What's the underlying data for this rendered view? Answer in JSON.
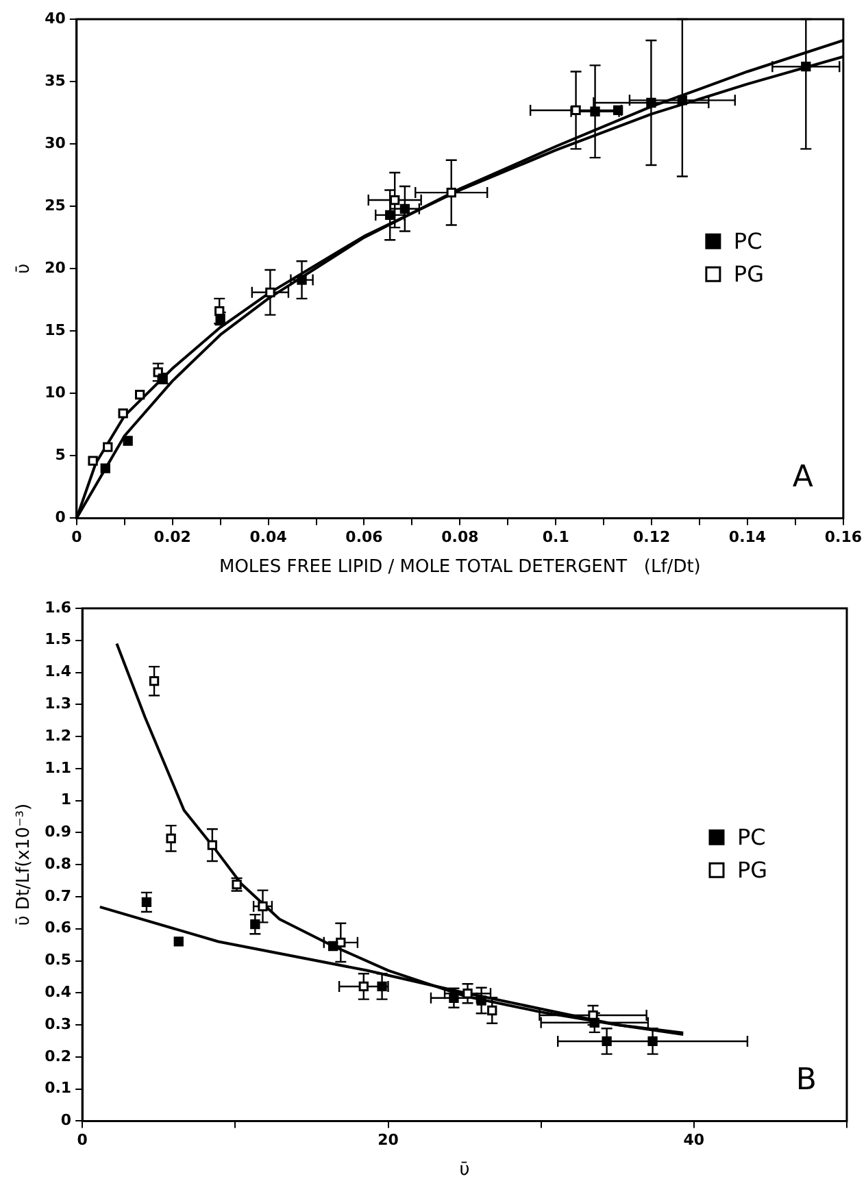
{
  "chart_data": [
    {
      "type": "scatter",
      "ylabel": "ῡ",
      "xlabel": "MOLES FREE LIPID / MOLE TOTAL DETERGENT   (Lf/Dt)",
      "xlim": [
        0,
        0.16
      ],
      "ylim": [
        0,
        40
      ],
      "xticks": [
        0,
        {
          "value": 0.01,
          "label": null
        },
        0.02,
        {
          "value": 0.03,
          "label": null
        },
        0.04,
        {
          "value": 0.05,
          "label": null
        },
        0.06,
        {
          "value": 0.07,
          "label": null
        },
        0.08,
        {
          "value": 0.09,
          "label": null
        },
        0.1,
        {
          "value": 0.11,
          "label": null
        },
        0.12,
        {
          "value": 0.13,
          "label": null
        },
        0.14,
        {
          "value": 0.15,
          "label": null
        },
        0.16
      ],
      "yticks": [
        0,
        5,
        10,
        15,
        20,
        25,
        30,
        35,
        40
      ],
      "legend": "right",
      "annotations": [
        "A"
      ],
      "series": [
        {
          "name": "PC",
          "color": "#000000",
          "marker": "square",
          "x": [
            0.006,
            0.0107,
            0.018,
            0.03,
            0.047,
            0.0654,
            0.0685,
            0.1082,
            0.113,
            0.1199,
            0.1264,
            0.1522
          ],
          "values": [
            4.0,
            6.2,
            11.2,
            16.0,
            19.1,
            24.3,
            24.8,
            32.6,
            32.7,
            33.3,
            33.5,
            36.2
          ],
          "errors": [
            null,
            null,
            0.4,
            0.5,
            1.5,
            2.0,
            1.8,
            3.7,
            null,
            5,
            [
              27.4,
              40
            ],
            [
              29.6,
              40
            ]
          ],
          "xerrors": [
            null,
            null,
            null,
            null,
            0.0023,
            0.003,
            0.003,
            0.005,
            null,
            0.012,
            0.011,
            0.007
          ]
        },
        {
          "name": "PG",
          "color": "#000000",
          "marker": "square",
          "x": [
            0.0034,
            0.0065,
            0.0097,
            0.0132,
            0.017,
            0.0298,
            0.0404,
            0.0664,
            0.0782,
            0.1042
          ],
          "values": [
            4.6,
            5.7,
            8.4,
            9.9,
            11.7,
            16.6,
            18.1,
            25.5,
            26.1,
            32.7
          ],
          "errors": [
            null,
            null,
            null,
            null,
            0.7,
            1.0,
            1.8,
            2.2,
            2.6,
            3.1
          ],
          "xerrors": [
            null,
            null,
            null,
            null,
            null,
            null,
            0.0038,
            0.0055,
            0.0075,
            0.0095
          ]
        },
        {
          "type": "line",
          "color": "#000000",
          "marker": "none",
          "x": [
            0,
            0.01,
            0.02,
            0.03,
            0.04,
            0.06,
            0.08,
            0.1,
            0.12,
            0.14,
            0.16
          ],
          "values": [
            0,
            6.6,
            11,
            14.7,
            17.6,
            22.5,
            26.4,
            29.8,
            33,
            35.8,
            38.3
          ]
        },
        {
          "type": "line",
          "color": "#000000",
          "marker": "none",
          "x": [
            0,
            0.004,
            0.01,
            0.02,
            0.03,
            0.04,
            0.06,
            0.08,
            0.1,
            0.12,
            0.14,
            0.16
          ],
          "values": [
            0,
            4.4,
            8.2,
            12,
            15.3,
            18,
            22.6,
            26.3,
            29.5,
            32.4,
            34.8,
            37
          ]
        }
      ]
    },
    {
      "type": "scatter",
      "ylabel": "ῡ Dt/Lf(x10⁻³)",
      "xlabel": "ῡ",
      "xlim": [
        0,
        50
      ],
      "ylim": [
        0,
        1.6
      ],
      "xticks": [
        0,
        {
          "value": 10,
          "label": null
        },
        20,
        {
          "value": 30,
          "label": null
        },
        40,
        {
          "value": 50,
          "label": null
        }
      ],
      "yticks": [
        0,
        0.1,
        0.2,
        0.3,
        0.4,
        0.5,
        0.6,
        0.7,
        0.8,
        0.9,
        1,
        1.1,
        1.2,
        1.3,
        1.4,
        1.5,
        1.6
      ],
      "legend": "right",
      "annotations": [
        "B"
      ],
      "series": [
        {
          "name": "PC",
          "color": "#000000",
          "marker": "square",
          "x": [
            4.2,
            6.3,
            11.3,
            16.4,
            19.6,
            24.3,
            26.1,
            33.5,
            34.3,
            37.3
          ],
          "values": [
            0.683,
            0.56,
            0.614,
            0.546,
            0.42,
            0.384,
            0.376,
            0.307,
            0.249,
            0.249
          ],
          "errors": [
            0.03,
            null,
            0.03,
            null,
            0.04,
            0.03,
            0.04,
            0.03,
            0.04,
            0.04
          ],
          "xerrors": [
            null,
            null,
            null,
            null,
            null,
            1.5,
            null,
            3.5,
            null,
            6.2
          ]
        },
        {
          "name": "PG",
          "color": "#000000",
          "marker": "square",
          "x": [
            4.7,
            5.8,
            8.5,
            10.1,
            11.8,
            16.9,
            18.4,
            25.2,
            26.8,
            33.4
          ],
          "values": [
            1.373,
            0.882,
            0.861,
            0.738,
            0.67,
            0.557,
            0.42,
            0.398,
            0.345,
            0.33
          ],
          "errors": [
            0.045,
            0.04,
            0.05,
            0.02,
            0.05,
            0.06,
            0.04,
            0.03,
            0.04,
            0.03
          ],
          "xerrors": [
            null,
            null,
            null,
            null,
            0.6,
            1.1,
            1.6,
            1.5,
            null,
            3.5
          ]
        },
        {
          "type": "line",
          "color": "#000000",
          "marker": "none",
          "x": [
            2.25,
            4.1,
            6.65,
            8.5,
            10.4,
            12.9,
            16.4,
            20,
            25,
            30,
            35,
            39.3
          ],
          "values": [
            1.49,
            1.26,
            0.97,
            0.86,
            0.74,
            0.63,
            0.546,
            0.47,
            0.39,
            0.34,
            0.3,
            0.275
          ]
        },
        {
          "type": "line",
          "color": "#000000",
          "marker": "none",
          "x": [
            1.15,
            8.9,
            18.6,
            25,
            30,
            35,
            39.3
          ],
          "values": [
            0.668,
            0.56,
            0.47,
            0.4,
            0.35,
            0.3,
            0.27
          ]
        }
      ]
    }
  ]
}
